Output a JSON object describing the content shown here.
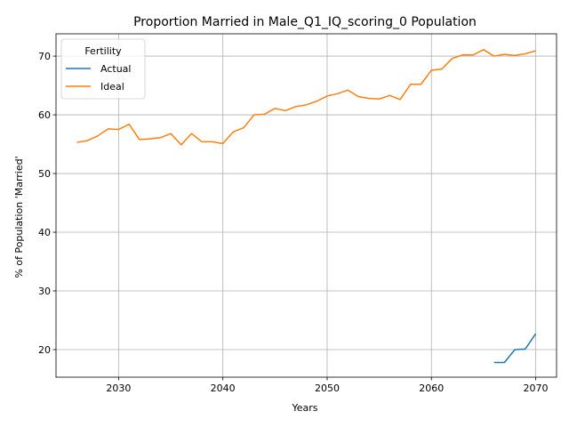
{
  "chart_data": {
    "type": "line",
    "title": "Proportion Married in Male_Q1_IQ_scoring_0 Population",
    "xlabel": "Years",
    "ylabel": "% of Population 'Married'",
    "xlim": [
      2024,
      2072
    ],
    "ylim": [
      15.3,
      73.8
    ],
    "xticks": [
      2030,
      2040,
      2050,
      2060,
      2070
    ],
    "yticks": [
      20,
      30,
      40,
      50,
      60,
      70
    ],
    "grid": true,
    "legend": {
      "title": "Fertility",
      "placement": "top-left"
    },
    "series": [
      {
        "name": "Actual",
        "color": "#1f77b4",
        "x": [
          2066,
          2067,
          2068,
          2069,
          2070
        ],
        "values": [
          17.8,
          17.8,
          20.0,
          20.1,
          22.7
        ]
      },
      {
        "name": "Ideal",
        "color": "#ff7f0e",
        "x": [
          2026,
          2027,
          2028,
          2029,
          2030,
          2031,
          2032,
          2033,
          2034,
          2035,
          2036,
          2037,
          2038,
          2039,
          2040,
          2041,
          2042,
          2043,
          2044,
          2045,
          2046,
          2047,
          2048,
          2049,
          2050,
          2051,
          2052,
          2053,
          2054,
          2055,
          2056,
          2057,
          2058,
          2059,
          2060,
          2061,
          2062,
          2063,
          2064,
          2065,
          2066,
          2067,
          2068,
          2069,
          2070
        ],
        "values": [
          55.3,
          55.6,
          56.4,
          57.6,
          57.5,
          58.4,
          55.8,
          55.9,
          56.1,
          56.8,
          54.9,
          56.8,
          55.4,
          55.4,
          55.1,
          57.1,
          57.8,
          60.0,
          60.1,
          61.1,
          60.7,
          61.4,
          61.7,
          62.3,
          63.2,
          63.6,
          64.2,
          63.1,
          62.8,
          62.7,
          63.3,
          62.6,
          65.2,
          65.2,
          67.6,
          67.8,
          69.6,
          70.2,
          70.2,
          71.1,
          70.0,
          70.3,
          70.1,
          70.4,
          70.9
        ]
      }
    ]
  }
}
